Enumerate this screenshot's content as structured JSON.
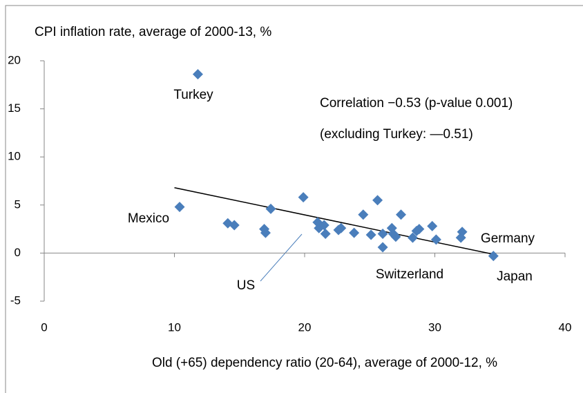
{
  "chart_data": {
    "type": "scatter",
    "title": "CPI inflation rate, average of 2000-13, %",
    "x_label": "Old (+65) dependency ratio (20-64), average of 2000-12, %",
    "x": [
      11.8,
      10.4,
      14.1,
      14.6,
      16.9,
      17.0,
      17.4,
      19.9,
      21.0,
      21.1,
      21.5,
      21.6,
      22.6,
      22.8,
      23.8,
      24.5,
      25.1,
      25.6,
      26.0,
      26.0,
      26.7,
      26.8,
      27.0,
      27.4,
      28.3,
      28.6,
      28.8,
      29.8,
      30.1,
      32.0,
      32.1,
      34.5
    ],
    "values": [
      18.6,
      4.8,
      3.1,
      2.9,
      2.5,
      2.1,
      4.6,
      5.8,
      3.2,
      2.6,
      2.9,
      2.0,
      2.4,
      2.6,
      2.1,
      4.0,
      1.9,
      5.5,
      2.0,
      0.6,
      2.6,
      2.0,
      1.7,
      4.0,
      1.6,
      2.3,
      2.5,
      2.8,
      1.4,
      1.6,
      2.2,
      -0.3
    ],
    "color": "#4a7ebb",
    "trendline": {
      "x": [
        10.0,
        34.4
      ],
      "y": [
        6.8,
        -0.1
      ],
      "color": "#000000"
    },
    "xlim": [
      0,
      40
    ],
    "xticks": [
      0,
      10,
      20,
      30,
      40
    ],
    "ylim": [
      -5,
      20
    ],
    "yticks": [
      -5,
      0,
      5,
      10,
      15,
      20
    ],
    "annotations": [
      "Turkey",
      "Mexico",
      "US",
      "Switzerland",
      "Germany",
      "Japan",
      "Correlation −0.53 (p-value 0.001)",
      "(excluding Turkey: —0.51)"
    ]
  }
}
